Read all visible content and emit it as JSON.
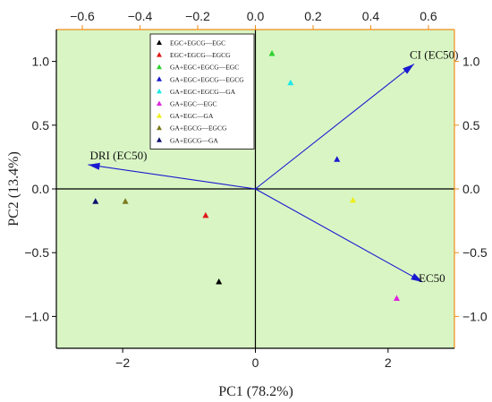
{
  "chart_data": {
    "type": "scatter",
    "title": "",
    "xlabel": "PC1 (78.2%)",
    "ylabel": "PC2 (13.4%)",
    "xlim": [
      -3.0,
      3.0
    ],
    "ylim": [
      -1.25,
      1.25
    ],
    "x_ticks": [
      -2,
      0,
      2
    ],
    "y_ticks": [
      -1.0,
      -0.5,
      0.0,
      0.5,
      1.0
    ],
    "top_axis": {
      "lim": [
        -0.69,
        0.69
      ],
      "ticks": [
        -0.6,
        -0.4,
        -0.2,
        0.0,
        0.2,
        0.4,
        0.6
      ]
    },
    "right_axis": {
      "lim": [
        -1.25,
        1.25
      ],
      "ticks": [
        -1.0,
        -0.5,
        0.0,
        0.5,
        1.0
      ]
    },
    "grid": false,
    "background": "#d9f5c4",
    "legend_placement": "top-center",
    "series": [
      {
        "name": "EGC+EGCG—EGC",
        "color": "#000000",
        "points": [
          [
            -0.55,
            -0.73
          ]
        ]
      },
      {
        "name": "EGC+EGCG—EGCG",
        "color": "#e01818",
        "points": [
          [
            -0.75,
            -0.21
          ]
        ]
      },
      {
        "name": "GA+EGC+EGCG—EGC",
        "color": "#2ed12e",
        "points": [
          [
            0.25,
            1.06
          ]
        ]
      },
      {
        "name": "GA+EGC+EGCG—EGCG",
        "color": "#1a1ad0",
        "points": [
          [
            1.23,
            0.23
          ]
        ]
      },
      {
        "name": "GA+EGC+EGCG—GA",
        "color": "#1ee8e8",
        "points": [
          [
            0.53,
            0.83
          ]
        ]
      },
      {
        "name": "GA+EGC—EGC",
        "color": "#e022e0",
        "points": [
          [
            2.13,
            -0.86
          ]
        ]
      },
      {
        "name": "GA+EGC—GA",
        "color": "#eeee1a",
        "points": [
          [
            1.47,
            -0.09
          ]
        ]
      },
      {
        "name": "GA+EGCG—EGCG",
        "color": "#7a7a20",
        "points": [
          [
            -1.96,
            -0.1
          ]
        ]
      },
      {
        "name": "GA+EGCG—GA",
        "color": "#10106e",
        "points": [
          [
            -2.41,
            -0.1
          ]
        ]
      }
    ],
    "loadings": [
      {
        "name": "CI (EC50)",
        "x": 0.55,
        "y": 0.98
      },
      {
        "name": "DRI (EC50)",
        "x": -0.58,
        "y": 0.19
      },
      {
        "name": "EC50",
        "x": 0.58,
        "y": -0.73
      }
    ],
    "vector_color": "#1a1ad0"
  }
}
